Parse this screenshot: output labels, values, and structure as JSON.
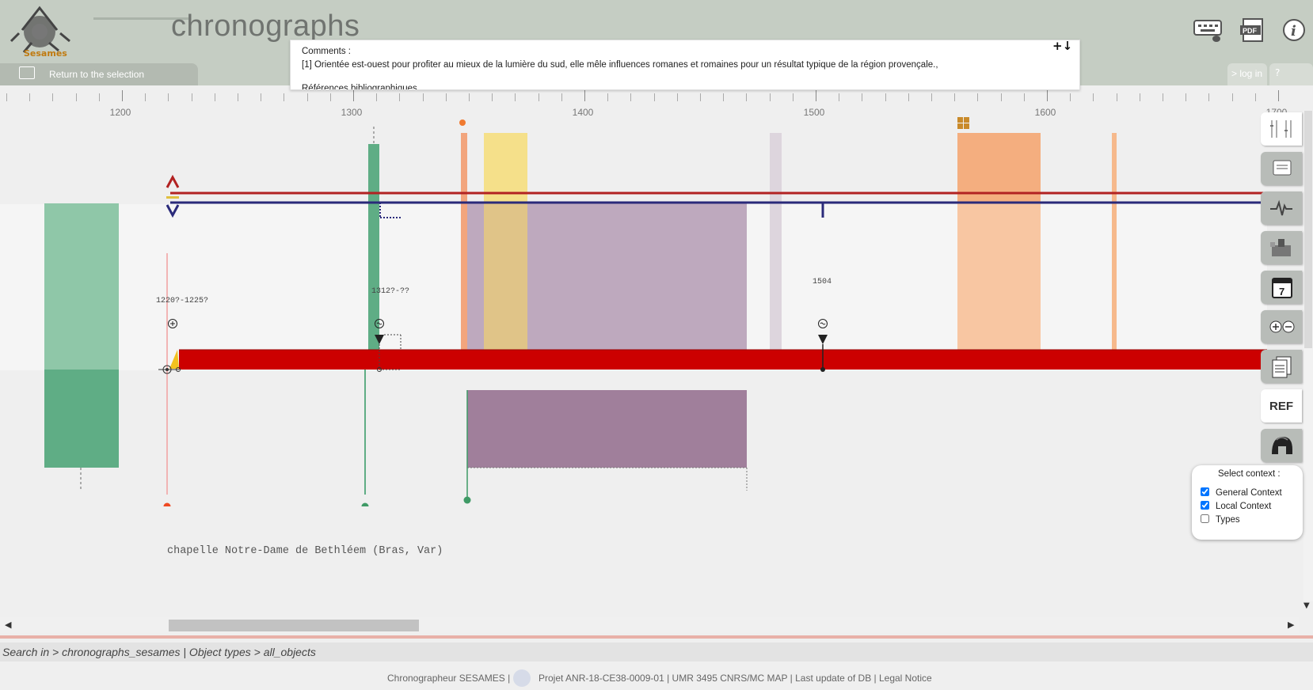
{
  "header": {
    "logo_text": "Sesames",
    "app_title": "chronographs",
    "return_label": "Return to the selection",
    "login_label": "> log in",
    "help_label": "?",
    "icons": [
      "keyboard-mouse-icon",
      "pdf-icon",
      "info-icon"
    ]
  },
  "comments": {
    "title": "Comments :",
    "text": "[1] Orientée est-ouest pour profiter au mieux de la lumière du sud, elle mêle influences romanes et romaines pour un résultat typique de la région provençale.,",
    "more": "Références bibliographiques",
    "expand_icon": "+↓"
  },
  "ruler": {
    "labels": [
      "1200",
      "1300",
      "1400",
      "1500",
      "1600",
      "1700"
    ]
  },
  "timeline": {
    "date_labels": [
      "1220?-1225?",
      "1312?-??",
      "1504"
    ],
    "site_label": "chapelle Notre-Dame de Bethléem (Bras, Var)",
    "colors": {
      "green_light": "#8fc7a8",
      "green_dark": "#5fad85",
      "purple_light": "#baa4ba",
      "purple_dark": "#a07f9b",
      "yellow": "#f5e08a",
      "orange": "#f6b98c",
      "red_bar": "#cc0000",
      "red_line": "#b22222",
      "blue_line": "#2a2a7a"
    }
  },
  "toolbar": {
    "ref_label": "REF",
    "icons": [
      "columns-icon",
      "clipboard-icon",
      "pulse-icon",
      "castle-icon",
      "calendar-icon",
      "zoom-icon",
      "documents-icon",
      "ref-icon",
      "helmet-icon"
    ],
    "calendar_number": "7"
  },
  "context": {
    "title": "Select context :",
    "options": [
      {
        "label": "General Context",
        "checked": true
      },
      {
        "label": "Local Context",
        "checked": true
      },
      {
        "label": "Types",
        "checked": false
      }
    ]
  },
  "search_bar": {
    "text": "Search in > chronographs_sesames | Object types > all_objects"
  },
  "footer": {
    "left": "Chronographeur SESAMES |",
    "right": "Projet ANR-18-CE38-0009-01 | UMR 3495 CNRS/MC MAP | Last update of DB | Legal Notice"
  }
}
